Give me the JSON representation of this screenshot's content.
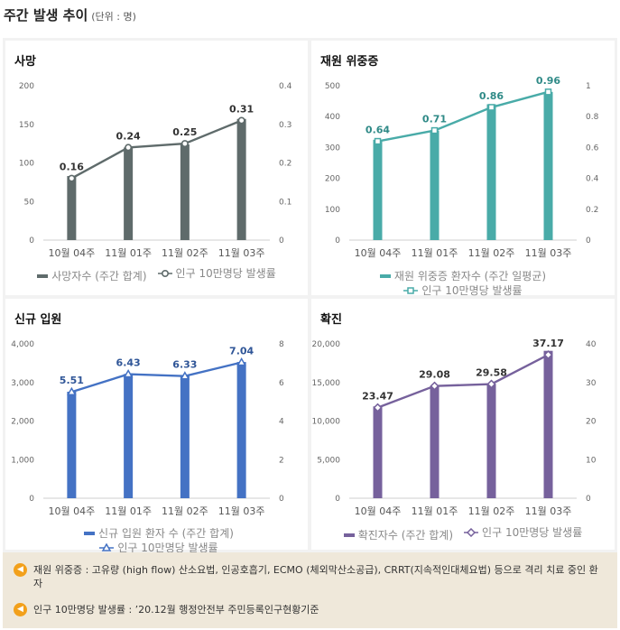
{
  "page": {
    "title": "주간 발생 추이",
    "unit": "(단위 : 명)"
  },
  "chart_data": [
    {
      "id": "deaths",
      "type": "bar",
      "title": "사망",
      "categories": [
        "10월 04주",
        "11월 01주",
        "11월 02주",
        "11월 03주"
      ],
      "series": [
        {
          "name": "사망자수 (주간 합계)",
          "type": "bar",
          "axis": "left",
          "values": [
            83,
            120,
            124,
            157
          ]
        },
        {
          "name": "인구 10만명당 발생률",
          "type": "line",
          "axis": "right",
          "values": [
            0.16,
            0.24,
            0.25,
            0.31
          ]
        }
      ],
      "y_left": {
        "min": 0,
        "max": 200,
        "ticks": [
          "0",
          "50",
          "100",
          "150",
          "200"
        ]
      },
      "y_right": {
        "min": 0,
        "max": 0.4,
        "ticks": [
          "0",
          "0.1",
          "0.2",
          "0.3",
          "0.4"
        ]
      },
      "labels": [
        "0.16",
        "0.24",
        "0.25",
        "0.31"
      ],
      "bar_color": "#5f6b6b",
      "line_color": "#5f6b6b",
      "label_color": "#333333",
      "marker": "circle",
      "legend_placement": "bottom"
    },
    {
      "id": "severe",
      "type": "bar",
      "title": "재원 위중증",
      "categories": [
        "10월 04주",
        "11월 01주",
        "11월 02주",
        "11월 03주"
      ],
      "series": [
        {
          "name": "재원 위중증 환자수 (주간 일평균)",
          "type": "bar",
          "axis": "left",
          "values": [
            325,
            355,
            440,
            480
          ]
        },
        {
          "name": "인구 10만명당 발생률",
          "type": "line",
          "axis": "right",
          "values": [
            0.64,
            0.71,
            0.86,
            0.96
          ]
        }
      ],
      "y_left": {
        "min": 0,
        "max": 500,
        "ticks": [
          "0",
          "100",
          "200",
          "300",
          "400",
          "500"
        ]
      },
      "y_right": {
        "min": 0,
        "max": 1,
        "ticks": [
          "0",
          "0.2",
          "0.4",
          "0.6",
          "0.8",
          "1"
        ]
      },
      "labels": [
        "0.64",
        "0.71",
        "0.86",
        "0.96"
      ],
      "bar_color": "#49aba8",
      "line_color": "#49aba8",
      "label_color": "#2f8a87",
      "marker": "square",
      "legend_placement": "bottom"
    },
    {
      "id": "admissions",
      "type": "bar",
      "title": "신규 입원",
      "categories": [
        "10월 04주",
        "11월 01주",
        "11월 02주",
        "11월 03주"
      ],
      "series": [
        {
          "name": "신규 입원 환자 수 (주간 합계)",
          "type": "bar",
          "axis": "left",
          "values": [
            2760,
            3220,
            3170,
            3530
          ]
        },
        {
          "name": "인구 10만명당 발생률",
          "type": "line",
          "axis": "right",
          "values": [
            5.51,
            6.43,
            6.33,
            7.04
          ]
        }
      ],
      "y_left": {
        "min": 0,
        "max": 4000,
        "ticks": [
          "0",
          "1,000",
          "2,000",
          "3,000",
          "4,000"
        ]
      },
      "y_right": {
        "min": 0,
        "max": 8,
        "ticks": [
          "0",
          "2",
          "4",
          "6",
          "8"
        ]
      },
      "labels": [
        "5.51",
        "6.43",
        "6.33",
        "7.04"
      ],
      "bar_color": "#4472c4",
      "line_color": "#4472c4",
      "label_color": "#2f5597",
      "marker": "triangle",
      "legend_placement": "bottom"
    },
    {
      "id": "confirmed",
      "type": "bar",
      "title": "확진",
      "categories": [
        "10월 04주",
        "11월 01주",
        "11월 02주",
        "11월 03주"
      ],
      "series": [
        {
          "name": "확진자수 (주간 합계)",
          "type": "bar",
          "axis": "left",
          "values": [
            11900,
            14500,
            14800,
            19100
          ]
        },
        {
          "name": "인구 10만명당 발생률",
          "type": "line",
          "axis": "right",
          "values": [
            23.47,
            29.08,
            29.58,
            37.17
          ]
        }
      ],
      "y_left": {
        "min": 0,
        "max": 20000,
        "ticks": [
          "0",
          "5,000",
          "10,000",
          "15,000",
          "20,000"
        ]
      },
      "y_right": {
        "min": 0,
        "max": 40,
        "ticks": [
          "0",
          "10",
          "20",
          "30",
          "40"
        ]
      },
      "labels": [
        "23.47",
        "29.08",
        "29.58",
        "37.17"
      ],
      "bar_color": "#76619c",
      "line_color": "#76619c",
      "label_color": "#333333",
      "marker": "diamond",
      "legend_placement": "bottom"
    }
  ],
  "notes": {
    "items": [
      {
        "icon": "speaker-icon",
        "text": "재원 위중증 : 고유량 (high flow) 산소요법, 인공호흡기, ECMO (체외막산소공급), CRRT(지속적인대체요법) 등으로 격리 치료 중인 환자"
      },
      {
        "icon": "speaker-icon",
        "text": "인구 10만명당 발생률 : ’20.12월 행정안전부 주민등록인구현황기준"
      }
    ],
    "icon_color": "#f2a01b",
    "background": "#efe8da"
  }
}
